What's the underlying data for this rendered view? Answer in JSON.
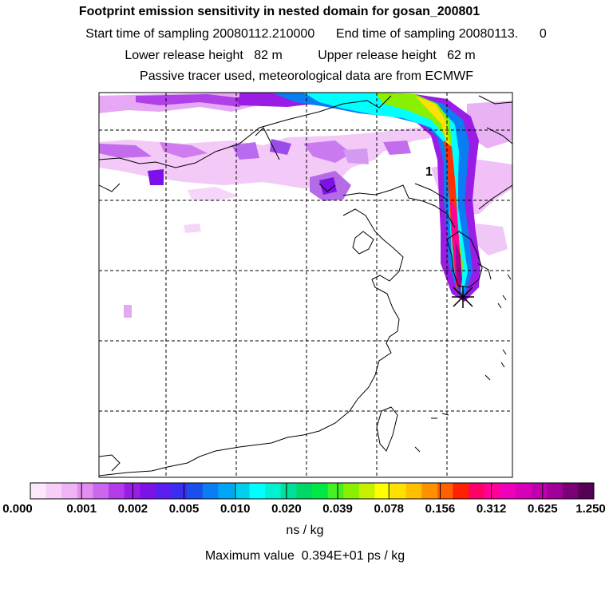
{
  "header": {
    "title": "Footprint emission sensitivity in nested domain for gosan_200801",
    "sampling": "Start time of sampling 20080112.210000      End time of sampling 20080113.      0",
    "release": "Lower release height   82 m          Upper release height   62 m",
    "tracer": "Passive tracer used, meteorological data are from ECMWF"
  },
  "map": {
    "release_marker_label": "1",
    "plume_colors": [
      "#ff00ff",
      "#8800ff",
      "#00ffff",
      "#00ff66",
      "#ffff00",
      "#ff0000"
    ]
  },
  "colorbar": {
    "colors": [
      "#fde7fb",
      "#f8cef8",
      "#f0b3f6",
      "#e28df2",
      "#cc66ee",
      "#b23ce9",
      "#9a1de6",
      "#7c12e8",
      "#5a1ff0",
      "#3a2fef",
      "#1a4fee",
      "#0b7df2",
      "#00a6f5",
      "#00cfee",
      "#00ffff",
      "#00f0d0",
      "#00e09a",
      "#00d866",
      "#00e844",
      "#44f022",
      "#88f000",
      "#c8f000",
      "#ffff00",
      "#ffe000",
      "#ffc000",
      "#ff9000",
      "#ff6000",
      "#ff2000",
      "#ff0066",
      "#ff0099",
      "#f000b8",
      "#d800b8",
      "#c000b0",
      "#a00098",
      "#7a0078",
      "#550055"
    ],
    "tick_labels": [
      "0.000",
      "0.001",
      "0.002",
      "0.005",
      "0.010",
      "0.020",
      "0.039",
      "0.078",
      "0.156",
      "0.312",
      "0.625",
      "1.250"
    ],
    "unit": "ns / kg"
  },
  "footer": {
    "maximum": "Maximum value  0.394E+01 ps / kg"
  }
}
